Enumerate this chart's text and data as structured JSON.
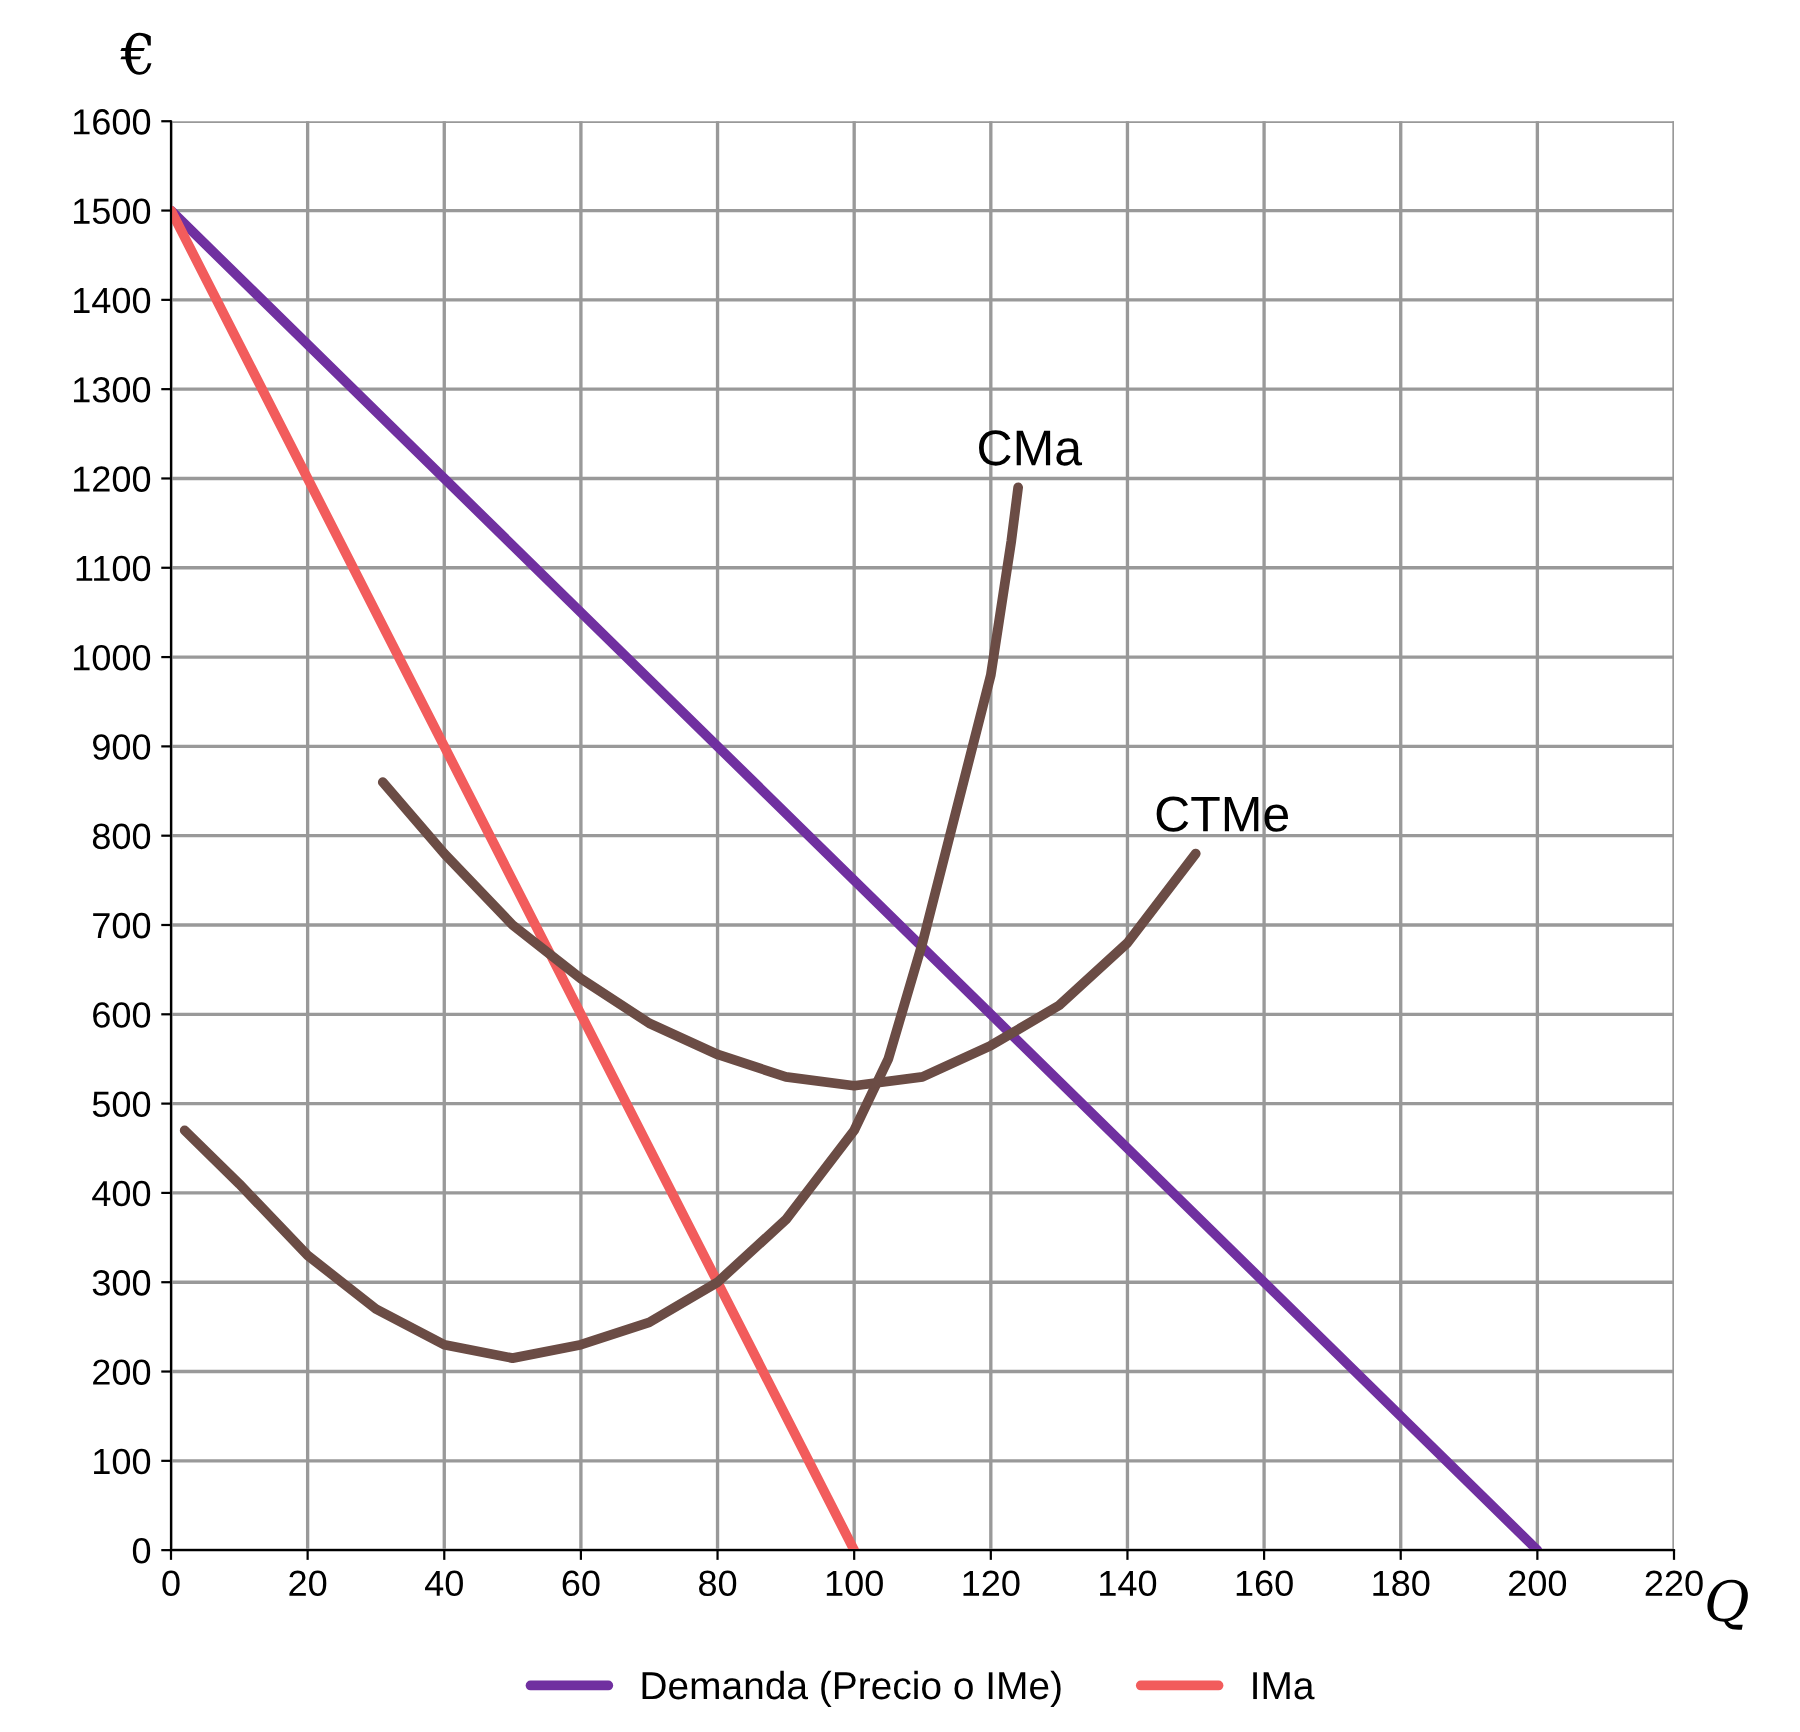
{
  "chart_data": {
    "type": "line",
    "xlabel": "Q",
    "ylabel": "€",
    "series": [
      {
        "name": "Demanda (Precio o IMe)",
        "color": "#7030a0",
        "x": [
          0,
          200
        ],
        "values": [
          1500,
          0
        ]
      },
      {
        "name": "IMa",
        "color": "#f25c5c",
        "x": [
          0,
          100
        ],
        "values": [
          1500,
          0
        ]
      },
      {
        "color": "#6b4c45",
        "x": [
          2,
          10,
          20,
          30,
          40,
          50,
          60,
          70,
          80,
          90,
          100,
          105,
          110,
          115,
          120,
          123,
          124
        ],
        "values": [
          470,
          410,
          330,
          270,
          230,
          215,
          230,
          255,
          300,
          370,
          470,
          550,
          680,
          830,
          980,
          1130,
          1190
        ]
      },
      {
        "color": "#6b4c45",
        "x": [
          31,
          40,
          50,
          60,
          70,
          80,
          90,
          100,
          110,
          120,
          130,
          140,
          150
        ],
        "values": [
          860,
          780,
          700,
          640,
          590,
          555,
          530,
          520,
          530,
          565,
          610,
          680,
          780
        ]
      }
    ],
    "annotations": [
      {
        "text": "CMa",
        "x": 124,
        "y": 1190
      },
      {
        "text": "CTMe",
        "x": 150,
        "y": 780
      }
    ],
    "xlim": [
      0,
      220
    ],
    "xticks": [
      0,
      20,
      40,
      60,
      80,
      100,
      120,
      140,
      160,
      180,
      200,
      220
    ],
    "ylim": [
      0,
      1600
    ],
    "yticks": [
      0,
      100,
      200,
      300,
      400,
      500,
      600,
      700,
      800,
      900,
      1000,
      1100,
      1200,
      1300,
      1400,
      1500,
      1600
    ],
    "grid": true,
    "legend": "bottom",
    "marker": "none",
    "line_style": "solid"
  }
}
